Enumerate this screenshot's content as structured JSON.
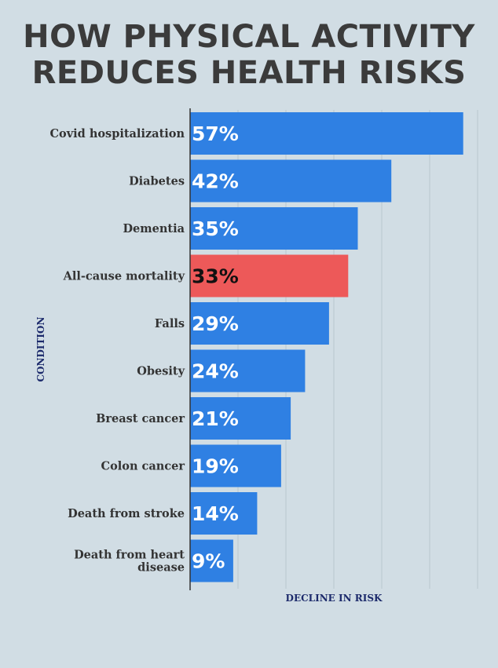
{
  "chart_data": {
    "type": "bar",
    "orientation": "horizontal",
    "title": "HOW PHYSICAL ACTIVITY REDUCES HEALTH RISKS",
    "xlabel": "DECLINE IN RISK",
    "ylabel": "CONDITION",
    "categories": [
      "Covid hospitalization",
      "Diabetes",
      "Dementia",
      "All-cause mortality",
      "Falls",
      "Obesity",
      "Breast cancer",
      "Colon cancer",
      "Death from stroke",
      "Death from heart disease"
    ],
    "values": [
      57,
      42,
      35,
      33,
      29,
      24,
      21,
      19,
      14,
      9
    ],
    "value_labels": [
      "57%",
      "42%",
      "35%",
      "33%",
      "29%",
      "24%",
      "21%",
      "19%",
      "14%",
      "9%"
    ],
    "highlight_index": 3,
    "xlim": [
      0,
      60
    ],
    "grid": true,
    "colors": {
      "bar": "#2f80e3",
      "highlight": "#ed5959",
      "background": "#d1dde4",
      "grid": "#b9c6ce",
      "label_on_highlight": "#111111",
      "label": "#ffffff"
    }
  }
}
